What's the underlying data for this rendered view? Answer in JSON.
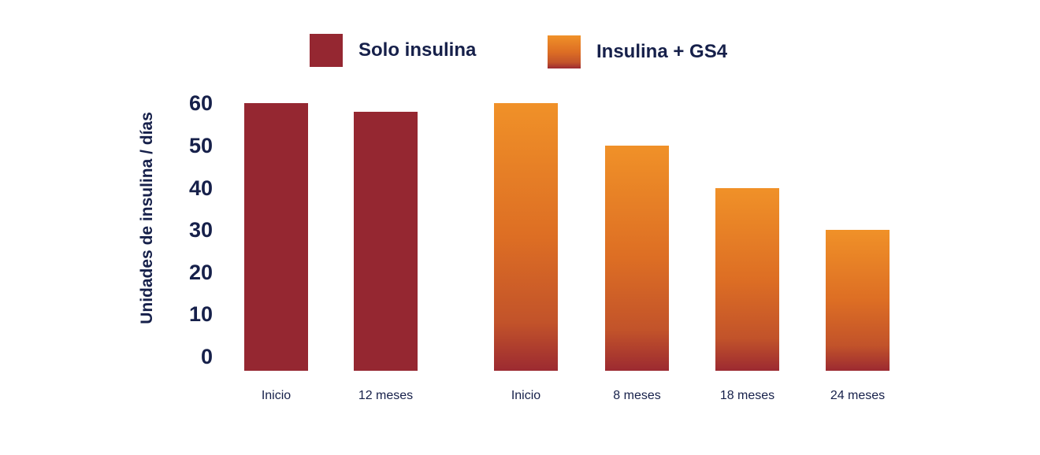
{
  "chart_data": {
    "type": "bar",
    "title": "",
    "ylabel": "Unidades de insulina / días",
    "xlabel": "",
    "yticks": [
      0,
      10,
      20,
      30,
      40,
      50,
      60
    ],
    "ylim": [
      0,
      60
    ],
    "grid": false,
    "legend_position": "top",
    "series": [
      {
        "name": "Solo insulina",
        "style": "solid",
        "categories": [
          "Inicio",
          "12 meses"
        ],
        "values": [
          60,
          58
        ]
      },
      {
        "name": "Insulina + GS4",
        "style": "grad",
        "categories": [
          "Inicio",
          "8 meses",
          "18 meses",
          "24 meses"
        ],
        "values": [
          60,
          50,
          40,
          30
        ]
      }
    ],
    "colors": {
      "solo_insulina_red": "#952731",
      "gradient_top_orange": "#F09128",
      "gradient_mid_orange": "#DD6E24",
      "gradient_low_rust": "#C2532A",
      "gradient_bottom_red": "#9C2A31",
      "text_navy": "#16204A",
      "background": "#FFFFFF"
    }
  }
}
